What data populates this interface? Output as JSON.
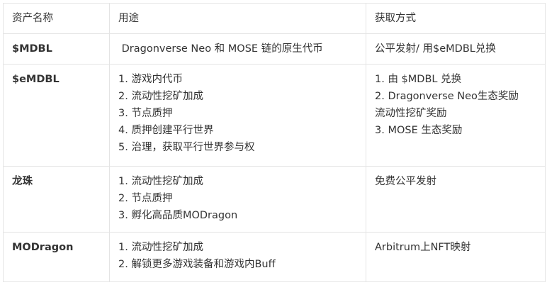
{
  "headers": [
    "资产名称",
    "用途",
    "获取方式"
  ],
  "rows": [
    {
      "name": "$MDBL",
      "use": [
        " Dragonverse Neo 和 MOSE 链的原生代币"
      ],
      "acquire": [
        "公平发射/ 用$eMDBL兑换"
      ]
    },
    {
      "name": "$eMDBL",
      "use": [
        "1. 游戏内代币",
        "2. 流动性挖矿加成",
        "3. 节点质押",
        "4. 质押创建平行世界",
        "5. 治理，获取平行世界参与权"
      ],
      "acquire": [
        "1. 由 $MDBL 兑换",
        "2. Dragonverse Neo生态奖励",
        "流动性挖矿奖励",
        "3. MOSE 生态奖励"
      ]
    },
    {
      "name": "龙珠",
      "use": [
        "1. 流动性挖矿加成",
        "2. 节点质押",
        "3. 孵化高品质MODragon"
      ],
      "acquire": [
        "免费公平发射"
      ]
    },
    {
      "name": "MODragon",
      "use": [
        "1. 流动性挖矿加成",
        "2. 解锁更多游戏装备和游戏内Buff"
      ],
      "acquire": [
        "Arbitrum上NFT映射"
      ]
    }
  ]
}
